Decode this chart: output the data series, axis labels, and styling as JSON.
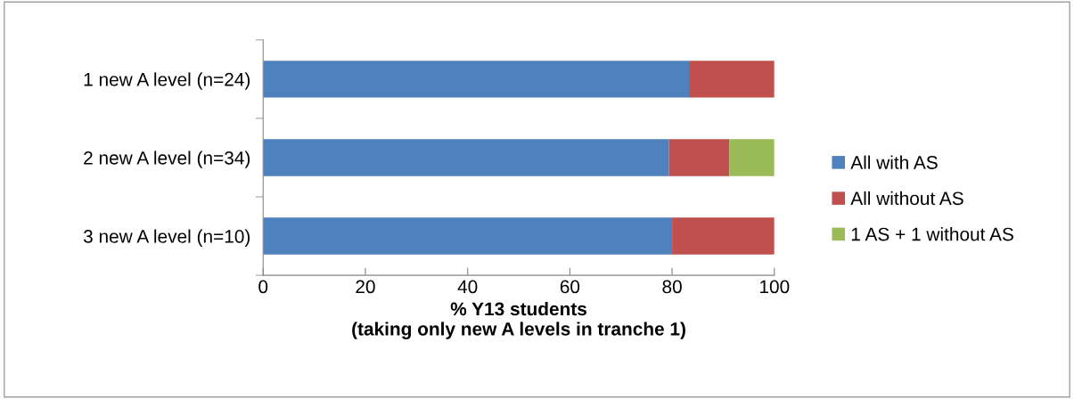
{
  "chart_data": {
    "type": "bar",
    "orientation": "horizontal",
    "stacked": true,
    "categories": [
      "1 new A level (n=24)",
      "2 new A level (n=34)",
      "3 new A level (n=10)"
    ],
    "series": [
      {
        "name": "All with AS",
        "color": "#4f81bd",
        "values": [
          83.3,
          79.4,
          80
        ]
      },
      {
        "name": "All without AS",
        "color": "#c0504d",
        "values": [
          16.7,
          11.8,
          20
        ]
      },
      {
        "name": "1 AS + 1 without AS",
        "color": "#9bbb59",
        "values": [
          0,
          8.8,
          0
        ]
      }
    ],
    "xlabel": "% Y13 students\n(taking only new A levels in tranche 1)",
    "xlim": [
      0,
      100
    ],
    "xticks": [
      0,
      20,
      40,
      60,
      80,
      100
    ],
    "grid": false,
    "legend": "right"
  }
}
